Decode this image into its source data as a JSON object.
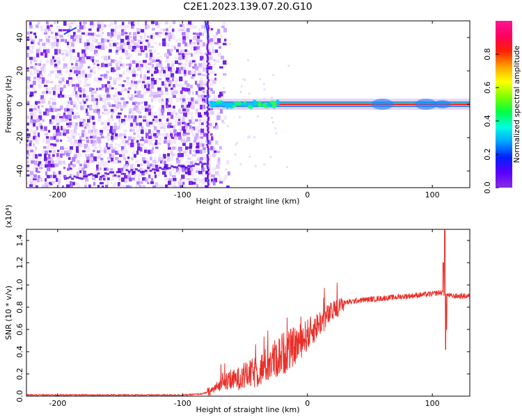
{
  "figure": {
    "title": "C2E1.2023.139.07.20.G10"
  },
  "colors": {
    "snr_line": "#e8302a",
    "spec_dark": "#6e00f0",
    "spec_light": "#dcc2ff",
    "colorbar_stops": [
      "#8a2be2",
      "#5a00ff",
      "#0020ff",
      "#00a0ff",
      "#00ffe0",
      "#00ff40",
      "#80ff00",
      "#ffff00",
      "#ffa000",
      "#ff2000",
      "#ff0060",
      "#ff1493"
    ]
  },
  "chart_data": [
    {
      "type": "heatmap",
      "title": "C2E1.2023.139.07.20.G10",
      "xlabel": "Height of straight line (km)",
      "ylabel": "Frequency (Hz)",
      "xlim": [
        -225,
        130
      ],
      "ylim": [
        -50,
        50
      ],
      "x_ticks": [
        -200,
        -100,
        0,
        100
      ],
      "y_ticks": [
        -40,
        -20,
        0,
        20,
        40
      ],
      "colorbar": {
        "label": "Normalized spectral amplitude",
        "range": [
          0.0,
          1.0
        ],
        "ticks": [
          "0.0",
          "0.2",
          "0.4",
          "0.6",
          "0.8"
        ]
      },
      "features": {
        "noise_region_x": [
          -225,
          -80
        ],
        "vertical_stripe_x": -80,
        "carrier_frequency_hz": 0,
        "carrier_start_x": -78,
        "carrier_peak_amplitude": 1.0
      }
    },
    {
      "type": "line",
      "xlabel": "Height of straight line (km)",
      "ylabel": "SNR (10 * v/v)",
      "y_multiplier": "(x10⁴)",
      "xlim": [
        -225,
        130
      ],
      "ylim": [
        0.0,
        1.5
      ],
      "x_ticks": [
        -200,
        -100,
        0,
        100
      ],
      "y_ticks": [
        "0.0",
        "0.2",
        "0.4",
        "0.6",
        "0.8",
        "1.0",
        "1.2",
        "1.4"
      ],
      "series": [
        {
          "x": [
            -225,
            -200,
            -150,
            -100,
            -85,
            -78,
            -70,
            -60,
            -50,
            -40,
            -30,
            -20,
            -10,
            0,
            10,
            20,
            30,
            40,
            50,
            60,
            70,
            80,
            90,
            100,
            105,
            108,
            110,
            112,
            115,
            120,
            130
          ],
          "y": [
            0.01,
            0.01,
            0.01,
            0.01,
            0.02,
            0.04,
            0.1,
            0.14,
            0.18,
            0.22,
            0.3,
            0.38,
            0.45,
            0.55,
            0.66,
            0.76,
            0.84,
            0.86,
            0.87,
            0.88,
            0.89,
            0.9,
            0.91,
            0.92,
            0.93,
            0.93,
            0.92,
            0.91,
            0.9,
            0.9,
            0.9
          ]
        }
      ],
      "annotations": {
        "spike_x": 110,
        "spike_max": 1.5,
        "spike_min": 0.42
      }
    }
  ]
}
